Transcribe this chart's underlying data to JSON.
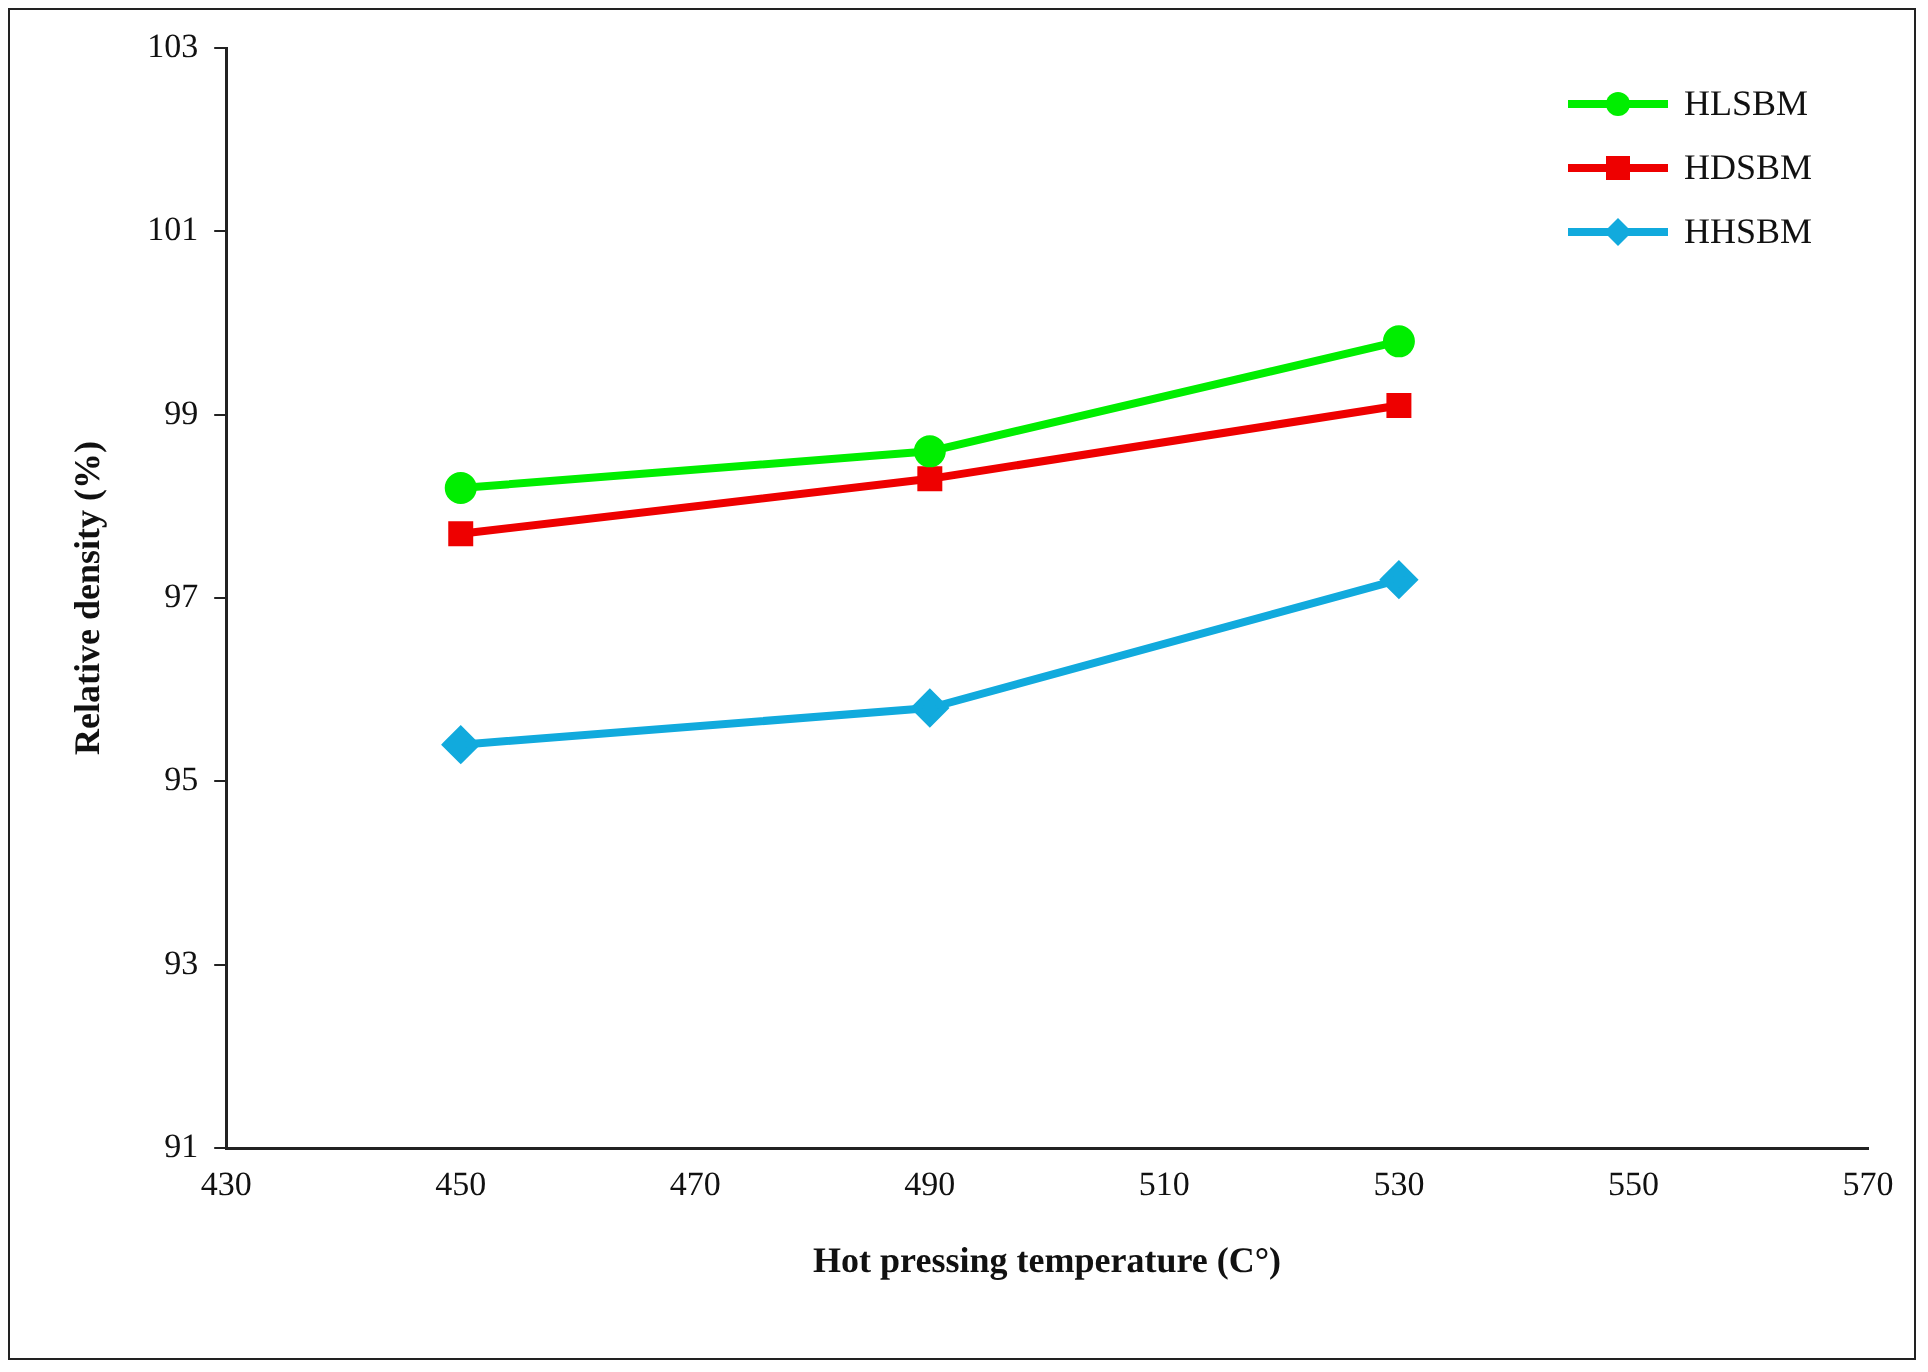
{
  "chart_data": {
    "type": "line",
    "xlabel": "Hot pressing temperature (C°)",
    "ylabel": "Relative density (%)",
    "x": [
      450,
      490,
      530
    ],
    "series": [
      {
        "name": "HLSBM",
        "color": "#00ee00",
        "marker": "circle",
        "values": [
          98.2,
          98.6,
          99.8
        ]
      },
      {
        "name": "HDSBM",
        "color": "#ee0000",
        "marker": "square",
        "values": [
          97.7,
          98.3,
          99.1
        ]
      },
      {
        "name": "HHSBM",
        "color": "#11aadd",
        "marker": "diamond",
        "values": [
          95.4,
          95.8,
          97.2
        ]
      }
    ],
    "xlim": [
      430,
      570
    ],
    "xticks": [
      430,
      450,
      470,
      490,
      510,
      530,
      550,
      570
    ],
    "ylim": [
      91,
      103
    ],
    "yticks": [
      91,
      93,
      95,
      97,
      99,
      101,
      103
    ],
    "grid": false,
    "legend": "top right"
  }
}
